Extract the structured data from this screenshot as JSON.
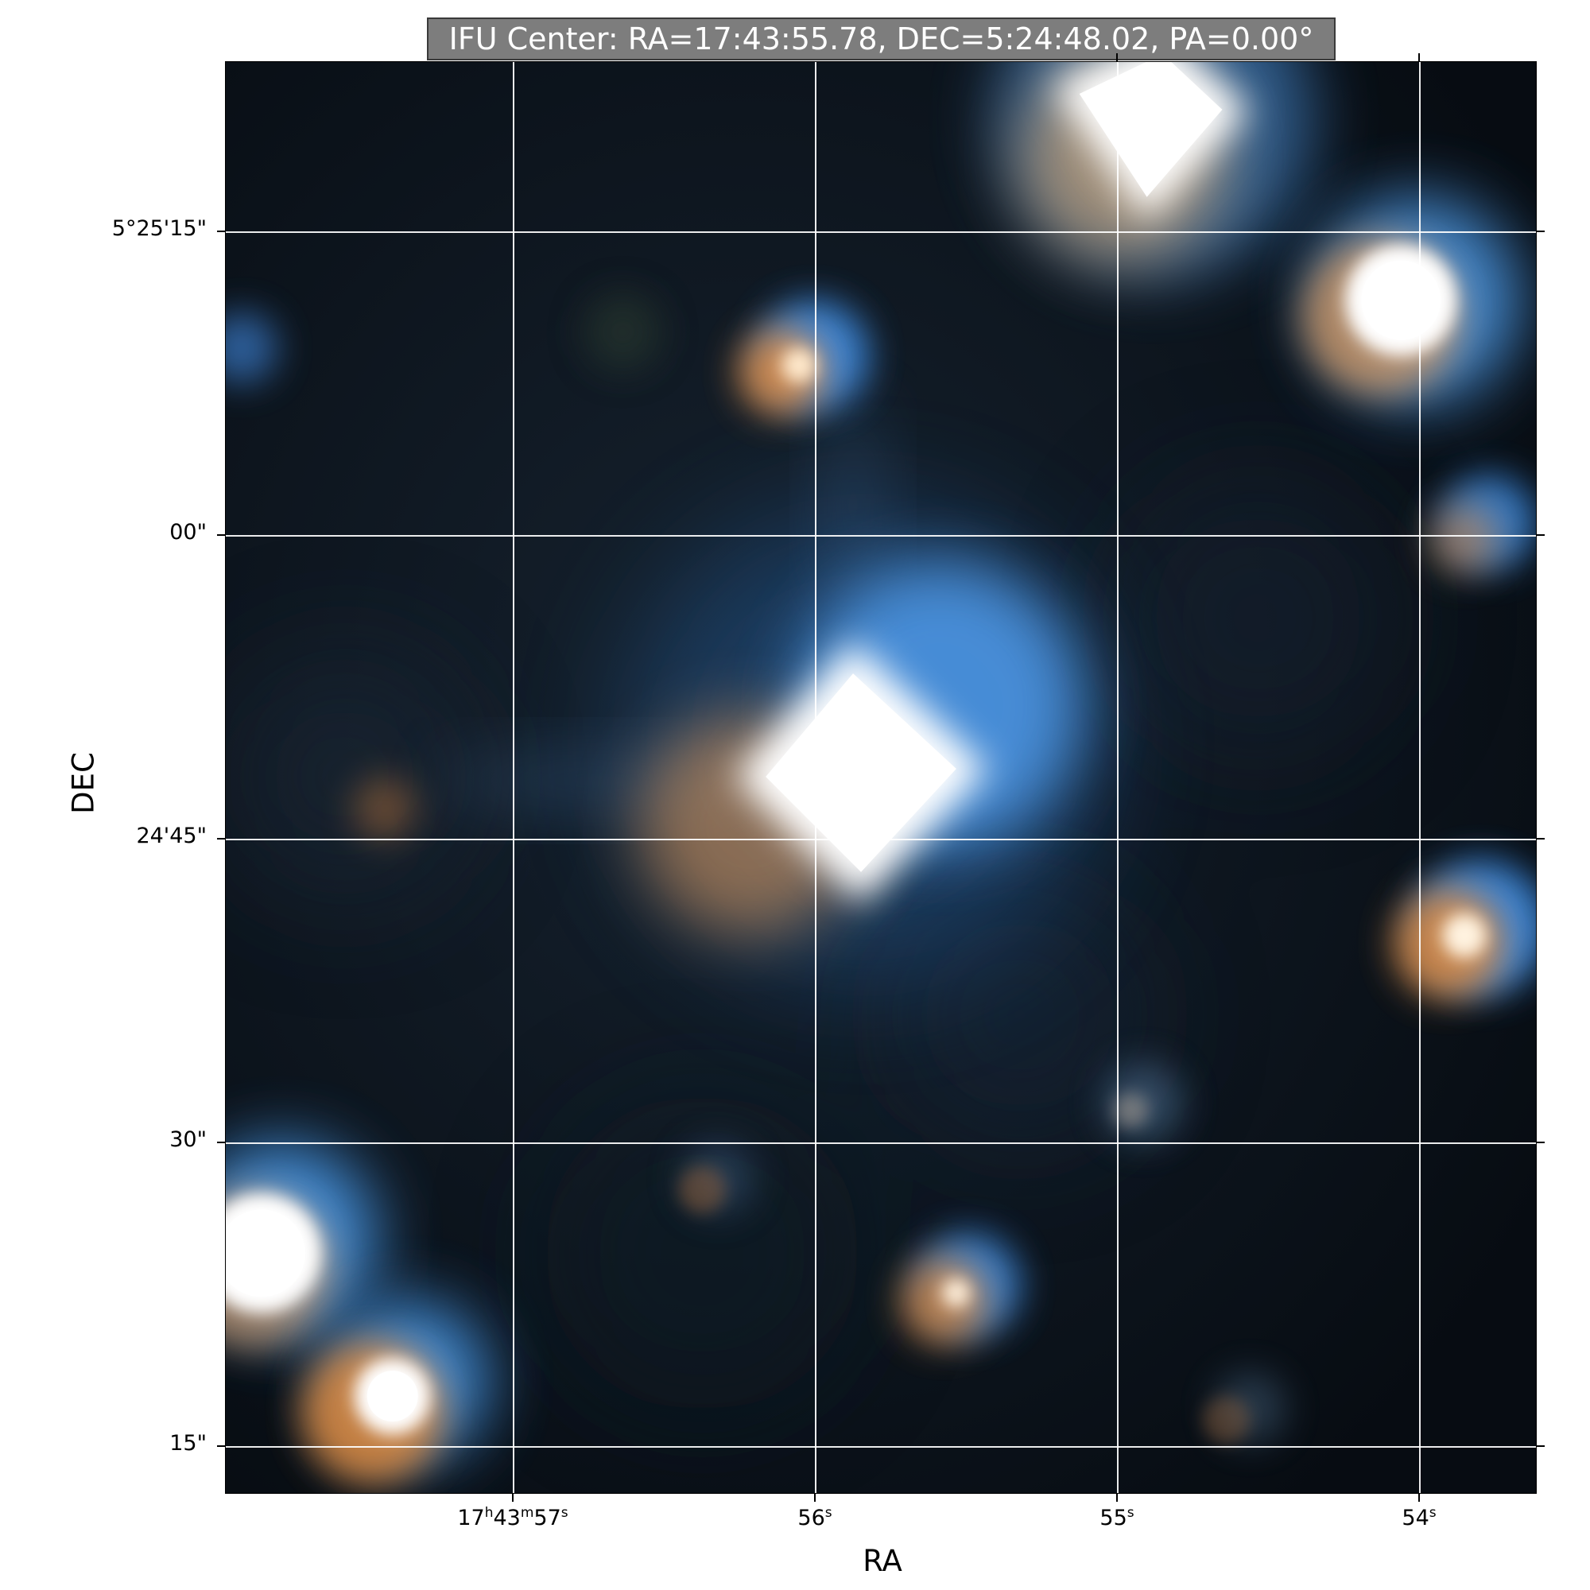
{
  "title": "IFU Center: RA=17:43:55.78, DEC=5:24:48.02, PA=0.00°",
  "x_axis": {
    "label": "RA",
    "ticks": [
      {
        "h": "17",
        "hu": "h",
        "m": "43",
        "mu": "m",
        "s": "57",
        "su": "s"
      },
      {
        "s": "56",
        "su": "s"
      },
      {
        "s": "55",
        "su": "s"
      },
      {
        "s": "54",
        "su": "s"
      }
    ]
  },
  "y_axis": {
    "label": "DEC",
    "ticks": [
      "5°25'15\"",
      "00\"",
      "24'45\"",
      "30\"",
      "15\""
    ]
  },
  "grid": true,
  "image": {
    "background_color": "#0a1119",
    "colors": {
      "white": "#ffffff",
      "blue": "#3d8fe8",
      "orange": "#e08a3c"
    },
    "content": "sky image with bright central star and surrounding stars"
  }
}
